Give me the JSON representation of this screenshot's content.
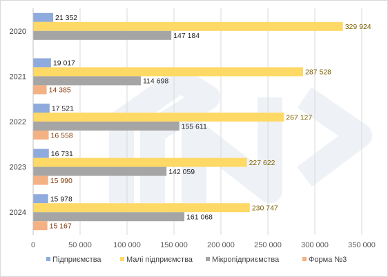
{
  "chart_data": {
    "type": "bar",
    "orientation": "horizontal",
    "title": "",
    "xlabel": "",
    "ylabel": "",
    "xlim": [
      0,
      350000
    ],
    "x_ticks": [
      0,
      50000,
      100000,
      150000,
      200000,
      250000,
      300000,
      350000
    ],
    "x_tick_labels": [
      "0",
      "50 000",
      "100 000",
      "150 000",
      "200 000",
      "250 000",
      "300 000",
      "350 000"
    ],
    "categories": [
      "2020",
      "2021",
      "2022",
      "2023",
      "2024"
    ],
    "grid": "vertical",
    "legend_position": "bottom",
    "series": [
      {
        "name": "Підприємства",
        "color": "#8faadc",
        "values": [
          21352,
          19017,
          17521,
          16731,
          15978
        ],
        "labels": [
          "21 352",
          "19 017",
          "17 521",
          "16 731",
          "15 978"
        ],
        "label_color": "#1f1f1f"
      },
      {
        "name": "Малі підприємства",
        "color": "#ffd966",
        "values": [
          329924,
          287528,
          267127,
          227622,
          230747
        ],
        "labels": [
          "329 924",
          "287 528",
          "267 127",
          "227 622",
          "230 747"
        ],
        "label_color": "#7f6000"
      },
      {
        "name": "Мікропідприємства",
        "color": "#a5a5a5",
        "values": [
          147184,
          114698,
          155611,
          142059,
          161068
        ],
        "labels": [
          "147 184",
          "114 698",
          "155 611",
          "142 059",
          "161 068"
        ],
        "label_color": "#1f1f1f"
      },
      {
        "name": "Форма №3",
        "color": "#f4b183",
        "values": [
          null,
          14385,
          16558,
          15990,
          15167
        ],
        "labels": [
          "",
          "14 385",
          "16 558",
          "15 990",
          "15 167"
        ],
        "label_color": "#843c0c"
      }
    ]
  }
}
